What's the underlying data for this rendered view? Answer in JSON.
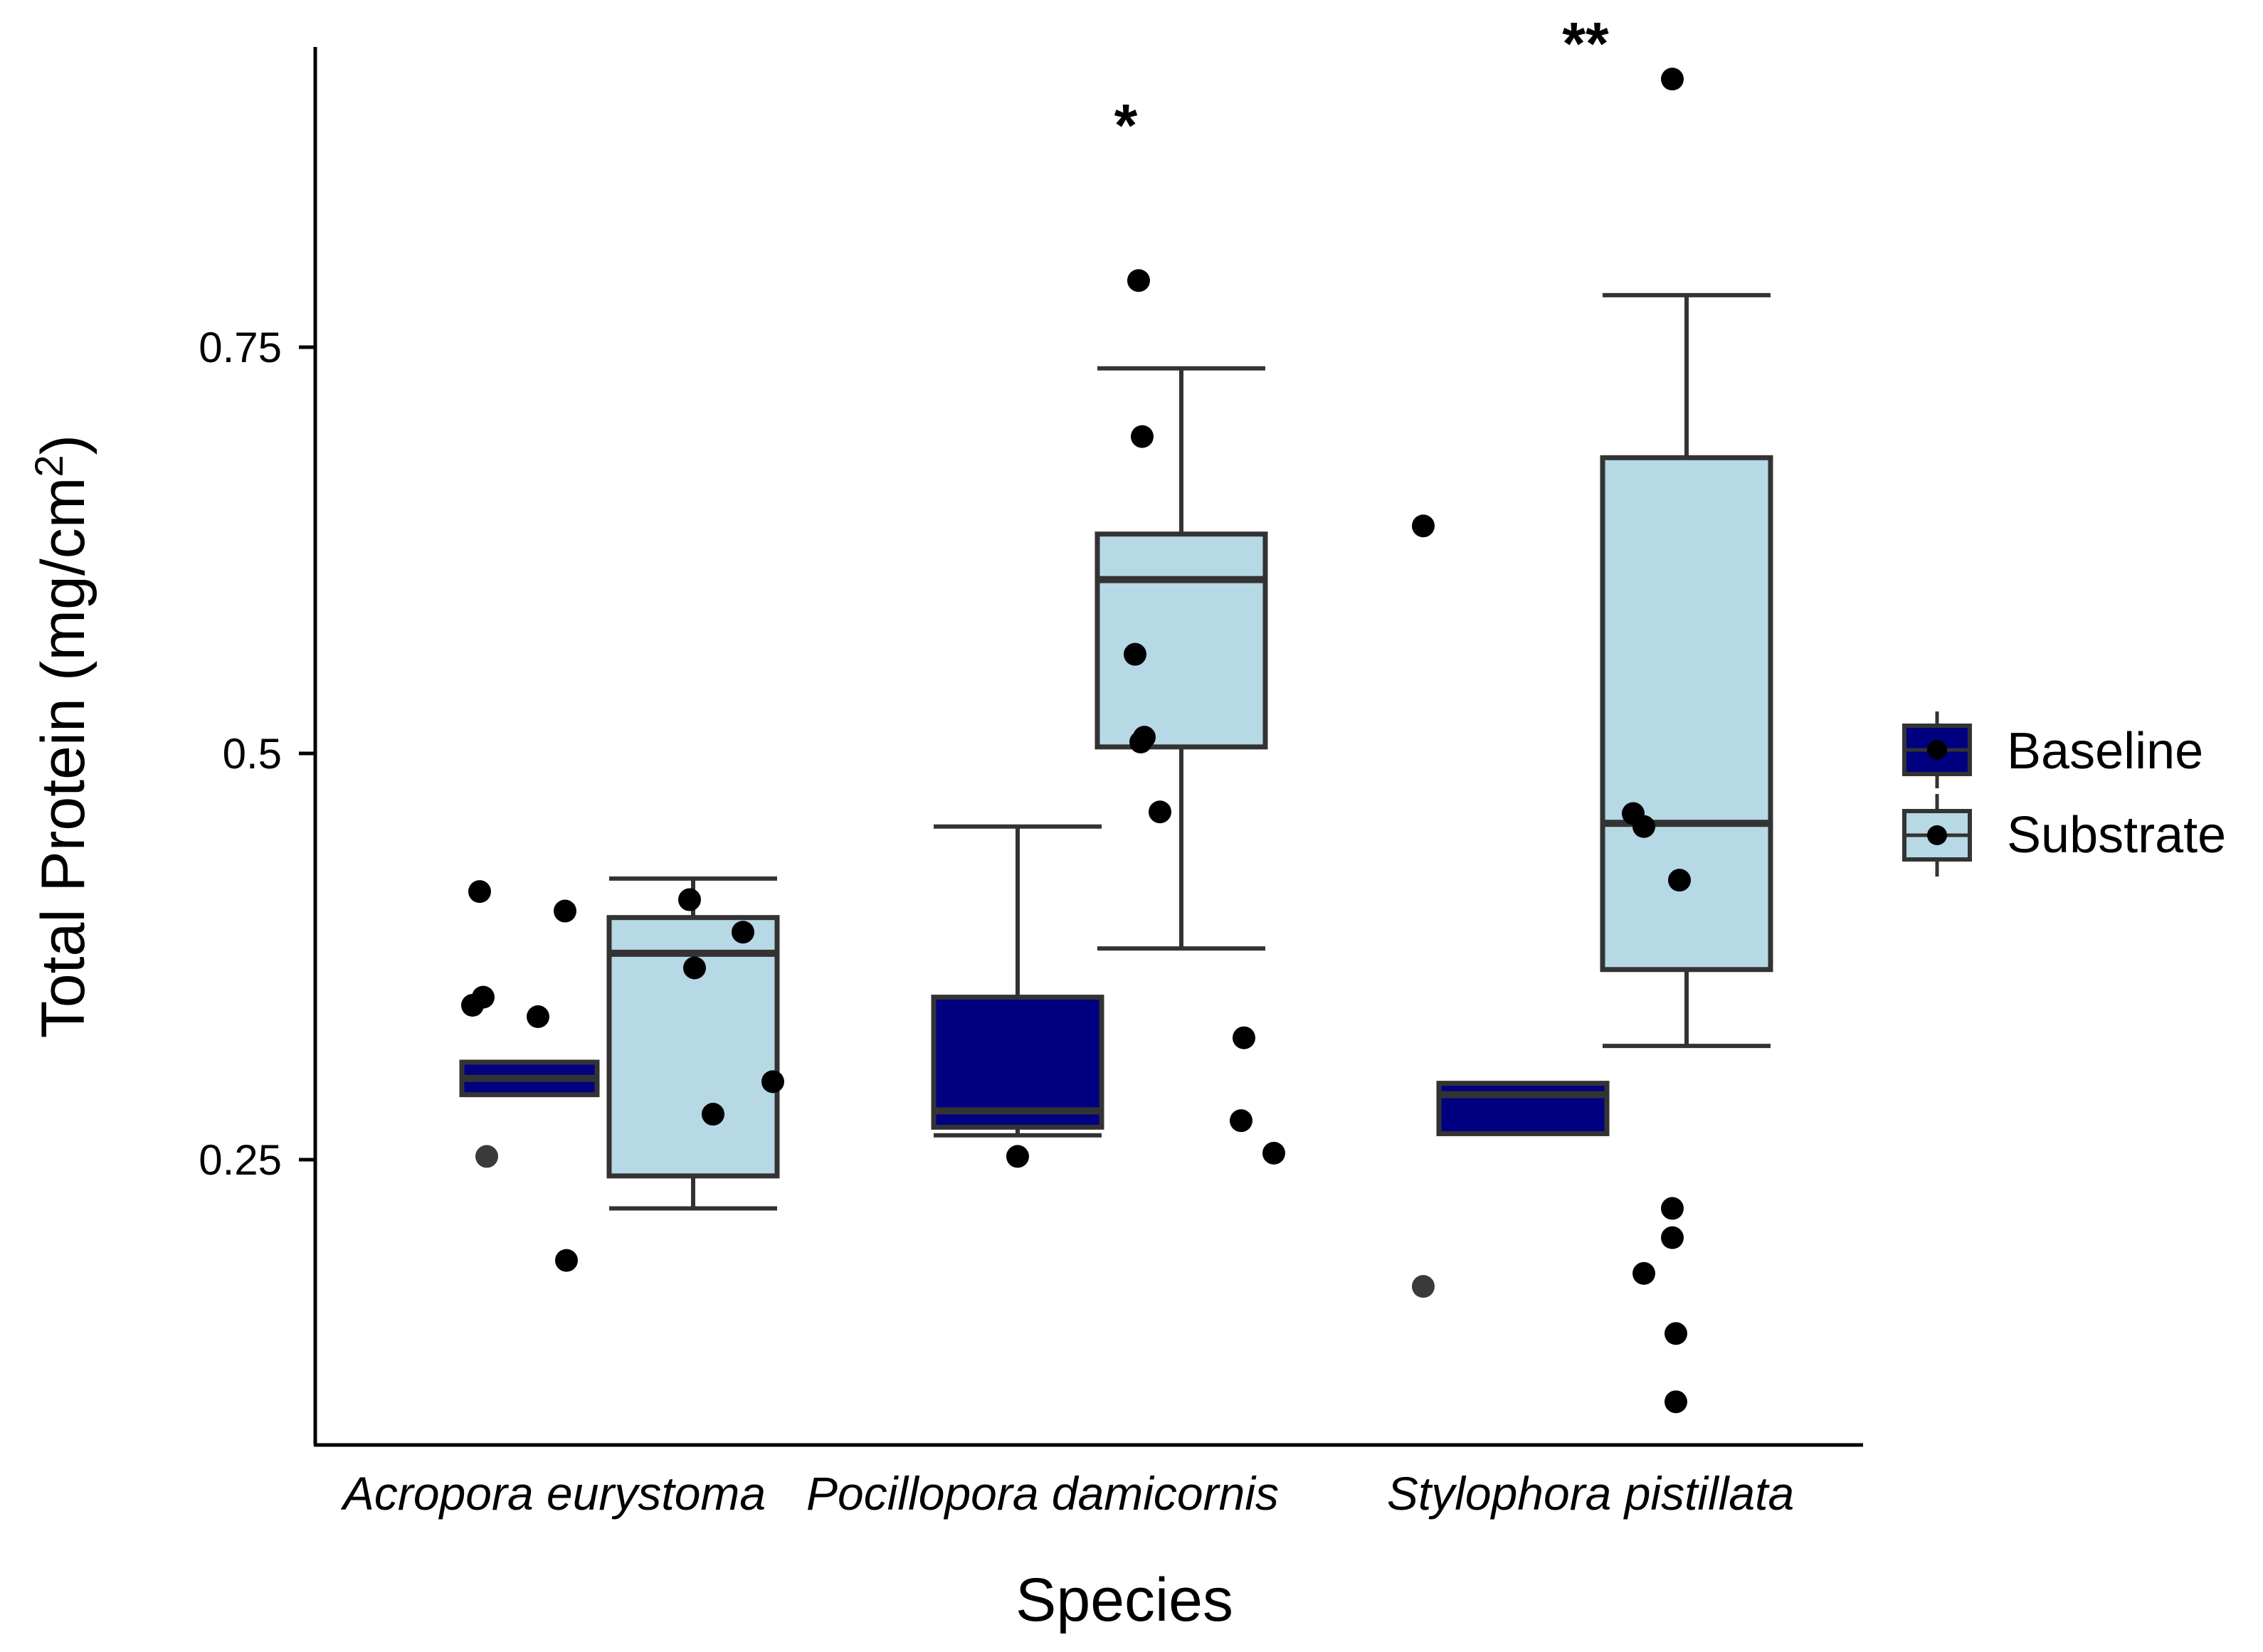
{
  "chart_data": {
    "type": "boxplot",
    "title": "",
    "xlabel": "Species",
    "ylabel": "Total Protein (mg/cm",
    "ylabel_superscript": "2",
    "ylabel_close": ")",
    "ylim": [
      0.08,
      0.93
    ],
    "yticks": [
      0.25,
      0.5,
      0.75
    ],
    "ytick_labels": [
      "0.25",
      "0.5",
      "0.75"
    ],
    "grid": false,
    "legend_position": "right",
    "categories": [
      "Acropora eurystoma",
      "Pocillopora damicornis",
      "Stylophora pistillata"
    ],
    "series": [
      {
        "name": "Baseline",
        "color": "#000080",
        "boxes": [
          {
            "q1": 0.29,
            "median": 0.3,
            "q3": 0.31,
            "whisker_low": 0.29,
            "whisker_high": 0.31
          },
          {
            "q1": 0.27,
            "median": 0.28,
            "q3": 0.35,
            "whisker_low": 0.265,
            "whisker_high": 0.455
          },
          {
            "q1": 0.266,
            "median": 0.29,
            "q3": 0.297,
            "whisker_low": 0.266,
            "whisker_high": 0.298
          }
        ],
        "points": [
          [
            0.415,
            0.252,
            0.345,
            0.35,
            0.403,
            0.338,
            0.188
          ],
          [
            0.252
          ],
          [
            0.64,
            0.172
          ]
        ]
      },
      {
        "name": "Substrate",
        "color": "#b7d8e5",
        "boxes": [
          {
            "q1": 0.24,
            "median": 0.377,
            "q3": 0.399,
            "whisker_low": 0.22,
            "whisker_high": 0.423
          },
          {
            "q1": 0.504,
            "median": 0.607,
            "q3": 0.635,
            "whisker_low": 0.38,
            "whisker_high": 0.737
          },
          {
            "q1": 0.367,
            "median": 0.457,
            "q3": 0.682,
            "whisker_low": 0.32,
            "whisker_high": 0.782
          }
        ],
        "points": [
          [
            0.41,
            0.39,
            0.368,
            0.298,
            0.278
          ],
          [
            0.791,
            0.695,
            0.561,
            0.51,
            0.507,
            0.464,
            0.325,
            0.274,
            0.254
          ],
          [
            0.915,
            0.463,
            0.455,
            0.422,
            0.22,
            0.202,
            0.18,
            0.143,
            0.101
          ]
        ]
      }
    ],
    "annotations": [
      "",
      "*",
      "**"
    ]
  }
}
